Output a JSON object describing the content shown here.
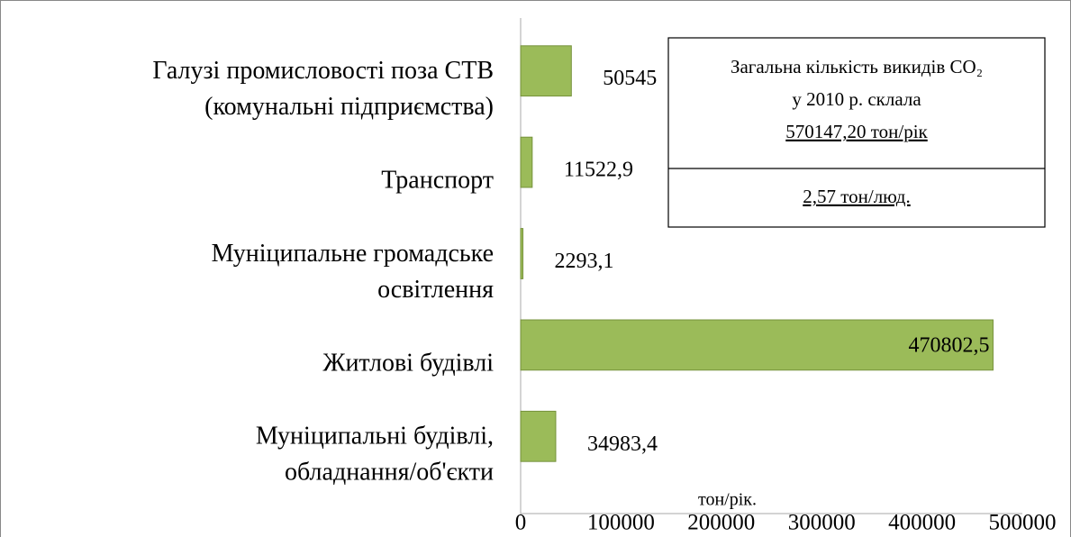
{
  "chart_data": {
    "type": "barh",
    "categories": [
      [
        "Галузі промисловості поза СТВ",
        "(комунальні підприємства)"
      ],
      [
        "Транспорт"
      ],
      [
        "Муніципальне громадське",
        "освітлення"
      ],
      [
        "Житлові будівлі"
      ],
      [
        "Муніципальні будівлі,",
        "обладнання/об'єкти"
      ]
    ],
    "values": [
      50545,
      11522.9,
      2293.1,
      470802.5,
      34983.4
    ],
    "value_labels": [
      "50545",
      "11522,9",
      "2293,1",
      "470802,5",
      "34983,4"
    ],
    "color": "#9bbb59",
    "xlim": [
      0,
      500000
    ],
    "xticks": [
      0,
      100000,
      200000,
      300000,
      400000,
      500000
    ],
    "grid": false,
    "annotation": {
      "lines": [
        "Загальна кількість викидів CO₂",
        "у 2010 р. склала",
        "570147,20 тон/рік"
      ],
      "per_capita": "2,57 тон/люд."
    },
    "unit_note": "тон/рік."
  }
}
